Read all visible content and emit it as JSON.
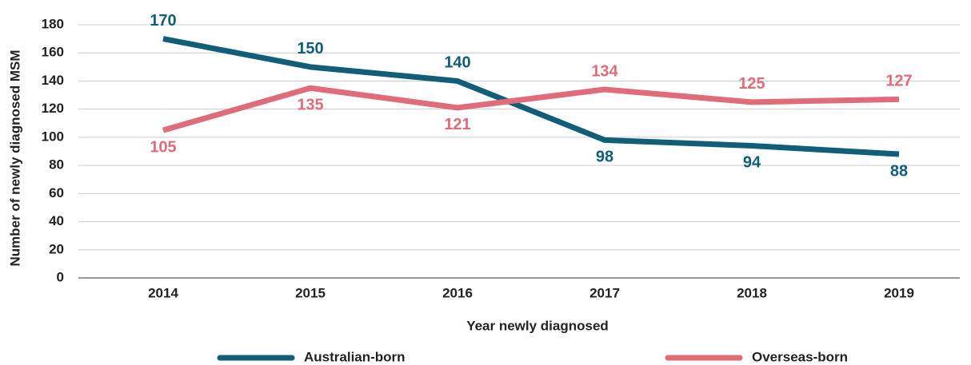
{
  "chart_data": {
    "type": "line",
    "x_label": "Year newly diagnosed",
    "y_label": "Number of newly diagnosed MSM",
    "categories": [
      "2014",
      "2015",
      "2016",
      "2017",
      "2018",
      "2019"
    ],
    "series": [
      {
        "name": "Australian-born",
        "color": "#115e78",
        "values": [
          170,
          150,
          140,
          98,
          94,
          88
        ]
      },
      {
        "name": "Overseas-born",
        "color": "#e06c7a",
        "values": [
          105,
          135,
          121,
          134,
          125,
          127
        ]
      }
    ],
    "ylim": [
      0,
      180
    ],
    "yticks": [
      0,
      20,
      40,
      60,
      80,
      100,
      120,
      140,
      160,
      180
    ],
    "grid": true,
    "legend": "bottom"
  }
}
